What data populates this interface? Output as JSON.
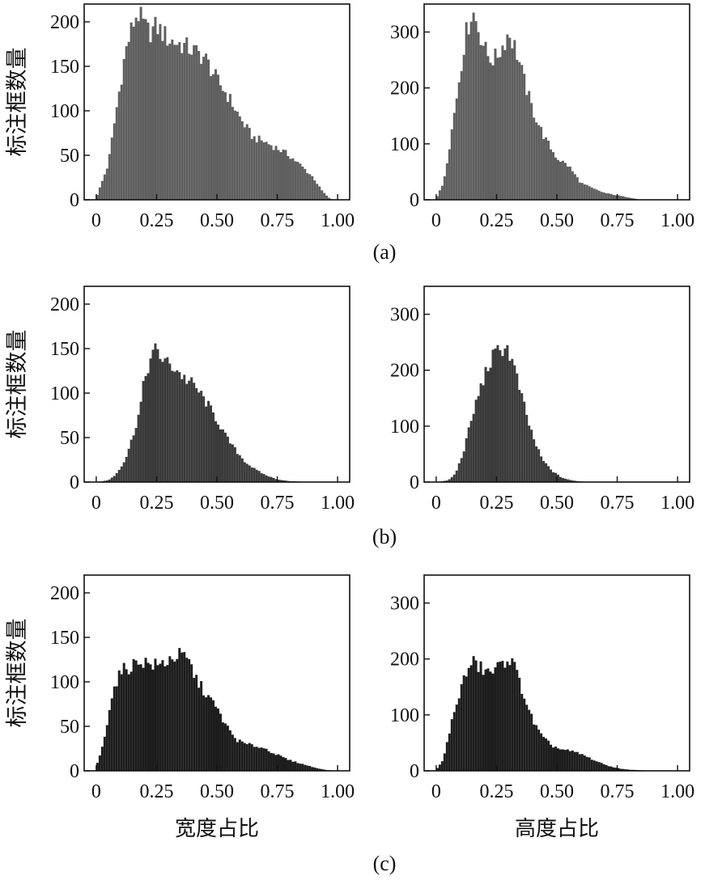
{
  "figure": {
    "row_captions": [
      "(a)",
      "(b)",
      "(c)"
    ],
    "ylabel": "标注框数量",
    "xlabels": [
      "宽度占比",
      "高度占比"
    ]
  },
  "chart_data": [
    {
      "type": "bar",
      "panel": "a-left",
      "color": "#5f5f5f",
      "xlim": [
        -0.05,
        1.05
      ],
      "ylim": [
        0,
        220
      ],
      "xticks": [
        "0",
        "0.25",
        "0.50",
        "0.75",
        "1.00"
      ],
      "yticks": [
        "0",
        "50",
        "100",
        "150",
        "200"
      ],
      "ytick_values": [
        0,
        50,
        100,
        150,
        200
      ],
      "ylabel": "标注框数量",
      "xlabel": "",
      "points": [
        [
          0.0,
          2
        ],
        [
          0.05,
          40
        ],
        [
          0.08,
          95
        ],
        [
          0.1,
          130
        ],
        [
          0.12,
          165
        ],
        [
          0.15,
          195
        ],
        [
          0.17,
          211
        ],
        [
          0.2,
          195
        ],
        [
          0.22,
          188
        ],
        [
          0.25,
          195
        ],
        [
          0.3,
          180
        ],
        [
          0.35,
          175
        ],
        [
          0.4,
          168
        ],
        [
          0.45,
          160
        ],
        [
          0.5,
          135
        ],
        [
          0.55,
          115
        ],
        [
          0.6,
          90
        ],
        [
          0.65,
          70
        ],
        [
          0.7,
          65
        ],
        [
          0.75,
          58
        ],
        [
          0.8,
          50
        ],
        [
          0.85,
          38
        ],
        [
          0.9,
          25
        ],
        [
          0.93,
          12
        ],
        [
          0.96,
          3
        ],
        [
          0.98,
          0
        ]
      ]
    },
    {
      "type": "bar",
      "panel": "a-right",
      "color": "#5f5f5f",
      "xlim": [
        -0.05,
        1.05
      ],
      "ylim": [
        0,
        350
      ],
      "xticks": [
        "0",
        "0.25",
        "0.50",
        "0.75",
        "1.00"
      ],
      "yticks": [
        "0",
        "100",
        "200",
        "300"
      ],
      "ytick_values": [
        0,
        100,
        200,
        300
      ],
      "ylabel": "",
      "xlabel": "",
      "points": [
        [
          0.0,
          2
        ],
        [
          0.03,
          30
        ],
        [
          0.06,
          110
        ],
        [
          0.09,
          200
        ],
        [
          0.12,
          290
        ],
        [
          0.15,
          340
        ],
        [
          0.18,
          300
        ],
        [
          0.21,
          260
        ],
        [
          0.24,
          250
        ],
        [
          0.27,
          270
        ],
        [
          0.3,
          300
        ],
        [
          0.33,
          270
        ],
        [
          0.36,
          220
        ],
        [
          0.4,
          160
        ],
        [
          0.45,
          110
        ],
        [
          0.5,
          75
        ],
        [
          0.55,
          60
        ],
        [
          0.6,
          30
        ],
        [
          0.65,
          20
        ],
        [
          0.7,
          12
        ],
        [
          0.75,
          8
        ],
        [
          0.8,
          4
        ],
        [
          0.85,
          0
        ]
      ]
    },
    {
      "type": "bar",
      "panel": "b-left",
      "color": "#3a3a3a",
      "xlim": [
        -0.05,
        1.05
      ],
      "ylim": [
        0,
        220
      ],
      "xticks": [
        "0",
        "0.25",
        "0.50",
        "0.75",
        "1.00"
      ],
      "yticks": [
        "0",
        "50",
        "100",
        "150",
        "200"
      ],
      "ytick_values": [
        0,
        50,
        100,
        150,
        200
      ],
      "ylabel": "标注框数量",
      "xlabel": "",
      "points": [
        [
          0.0,
          0
        ],
        [
          0.05,
          2
        ],
        [
          0.08,
          8
        ],
        [
          0.12,
          25
        ],
        [
          0.15,
          50
        ],
        [
          0.18,
          80
        ],
        [
          0.2,
          115
        ],
        [
          0.22,
          135
        ],
        [
          0.25,
          150
        ],
        [
          0.27,
          140
        ],
        [
          0.3,
          132
        ],
        [
          0.33,
          128
        ],
        [
          0.36,
          118
        ],
        [
          0.4,
          110
        ],
        [
          0.43,
          100
        ],
        [
          0.46,
          88
        ],
        [
          0.5,
          70
        ],
        [
          0.54,
          50
        ],
        [
          0.58,
          35
        ],
        [
          0.62,
          22
        ],
        [
          0.66,
          14
        ],
        [
          0.7,
          8
        ],
        [
          0.75,
          3
        ],
        [
          0.8,
          1
        ],
        [
          0.9,
          0
        ]
      ]
    },
    {
      "type": "bar",
      "panel": "b-right",
      "color": "#3a3a3a",
      "xlim": [
        -0.05,
        1.05
      ],
      "ylim": [
        0,
        350
      ],
      "xticks": [
        "0",
        "0.25",
        "0.50",
        "0.75",
        "1.00"
      ],
      "yticks": [
        "0",
        "100",
        "200",
        "300"
      ],
      "ytick_values": [
        0,
        100,
        200,
        300
      ],
      "ylabel": "",
      "xlabel": "",
      "points": [
        [
          0.0,
          0
        ],
        [
          0.05,
          3
        ],
        [
          0.08,
          15
        ],
        [
          0.11,
          50
        ],
        [
          0.14,
          100
        ],
        [
          0.17,
          150
        ],
        [
          0.2,
          190
        ],
        [
          0.23,
          220
        ],
        [
          0.26,
          235
        ],
        [
          0.29,
          245
        ],
        [
          0.32,
          210
        ],
        [
          0.35,
          160
        ],
        [
          0.38,
          110
        ],
        [
          0.41,
          70
        ],
        [
          0.44,
          40
        ],
        [
          0.48,
          20
        ],
        [
          0.52,
          8
        ],
        [
          0.56,
          3
        ],
        [
          0.6,
          1
        ],
        [
          0.7,
          0
        ]
      ]
    },
    {
      "type": "bar",
      "panel": "c-left",
      "color": "#1c1c1c",
      "xlim": [
        -0.05,
        1.05
      ],
      "ylim": [
        0,
        220
      ],
      "xticks": [
        "0",
        "0.25",
        "0.50",
        "0.75",
        "1.00"
      ],
      "yticks": [
        "0",
        "50",
        "100",
        "150",
        "200"
      ],
      "ytick_values": [
        0,
        50,
        100,
        150,
        200
      ],
      "ylabel": "标注框数量",
      "xlabel": "宽度占比",
      "points": [
        [
          0.0,
          5
        ],
        [
          0.03,
          30
        ],
        [
          0.06,
          80
        ],
        [
          0.09,
          105
        ],
        [
          0.12,
          115
        ],
        [
          0.15,
          118
        ],
        [
          0.18,
          125
        ],
        [
          0.22,
          120
        ],
        [
          0.26,
          118
        ],
        [
          0.3,
          125
        ],
        [
          0.34,
          130
        ],
        [
          0.38,
          125
        ],
        [
          0.42,
          100
        ],
        [
          0.46,
          85
        ],
        [
          0.5,
          70
        ],
        [
          0.54,
          50
        ],
        [
          0.58,
          35
        ],
        [
          0.62,
          30
        ],
        [
          0.66,
          28
        ],
        [
          0.7,
          25
        ],
        [
          0.75,
          18
        ],
        [
          0.8,
          12
        ],
        [
          0.85,
          8
        ],
        [
          0.9,
          4
        ],
        [
          0.95,
          1
        ],
        [
          1.0,
          0
        ]
      ]
    },
    {
      "type": "bar",
      "panel": "c-right",
      "color": "#1c1c1c",
      "xlim": [
        -0.05,
        1.05
      ],
      "ylim": [
        0,
        350
      ],
      "xticks": [
        "0",
        "0.25",
        "0.50",
        "0.75",
        "1.00"
      ],
      "yticks": [
        "0",
        "100",
        "200",
        "300"
      ],
      "ytick_values": [
        0,
        100,
        200,
        300
      ],
      "ylabel": "",
      "xlabel": "高度占比",
      "points": [
        [
          0.0,
          2
        ],
        [
          0.03,
          20
        ],
        [
          0.06,
          80
        ],
        [
          0.09,
          130
        ],
        [
          0.12,
          170
        ],
        [
          0.15,
          195
        ],
        [
          0.18,
          185
        ],
        [
          0.22,
          175
        ],
        [
          0.26,
          185
        ],
        [
          0.3,
          205
        ],
        [
          0.33,
          180
        ],
        [
          0.36,
          140
        ],
        [
          0.4,
          90
        ],
        [
          0.44,
          60
        ],
        [
          0.48,
          45
        ],
        [
          0.52,
          38
        ],
        [
          0.56,
          35
        ],
        [
          0.6,
          30
        ],
        [
          0.64,
          22
        ],
        [
          0.68,
          14
        ],
        [
          0.72,
          8
        ],
        [
          0.76,
          4
        ],
        [
          0.8,
          2
        ],
        [
          0.9,
          0
        ]
      ]
    }
  ]
}
